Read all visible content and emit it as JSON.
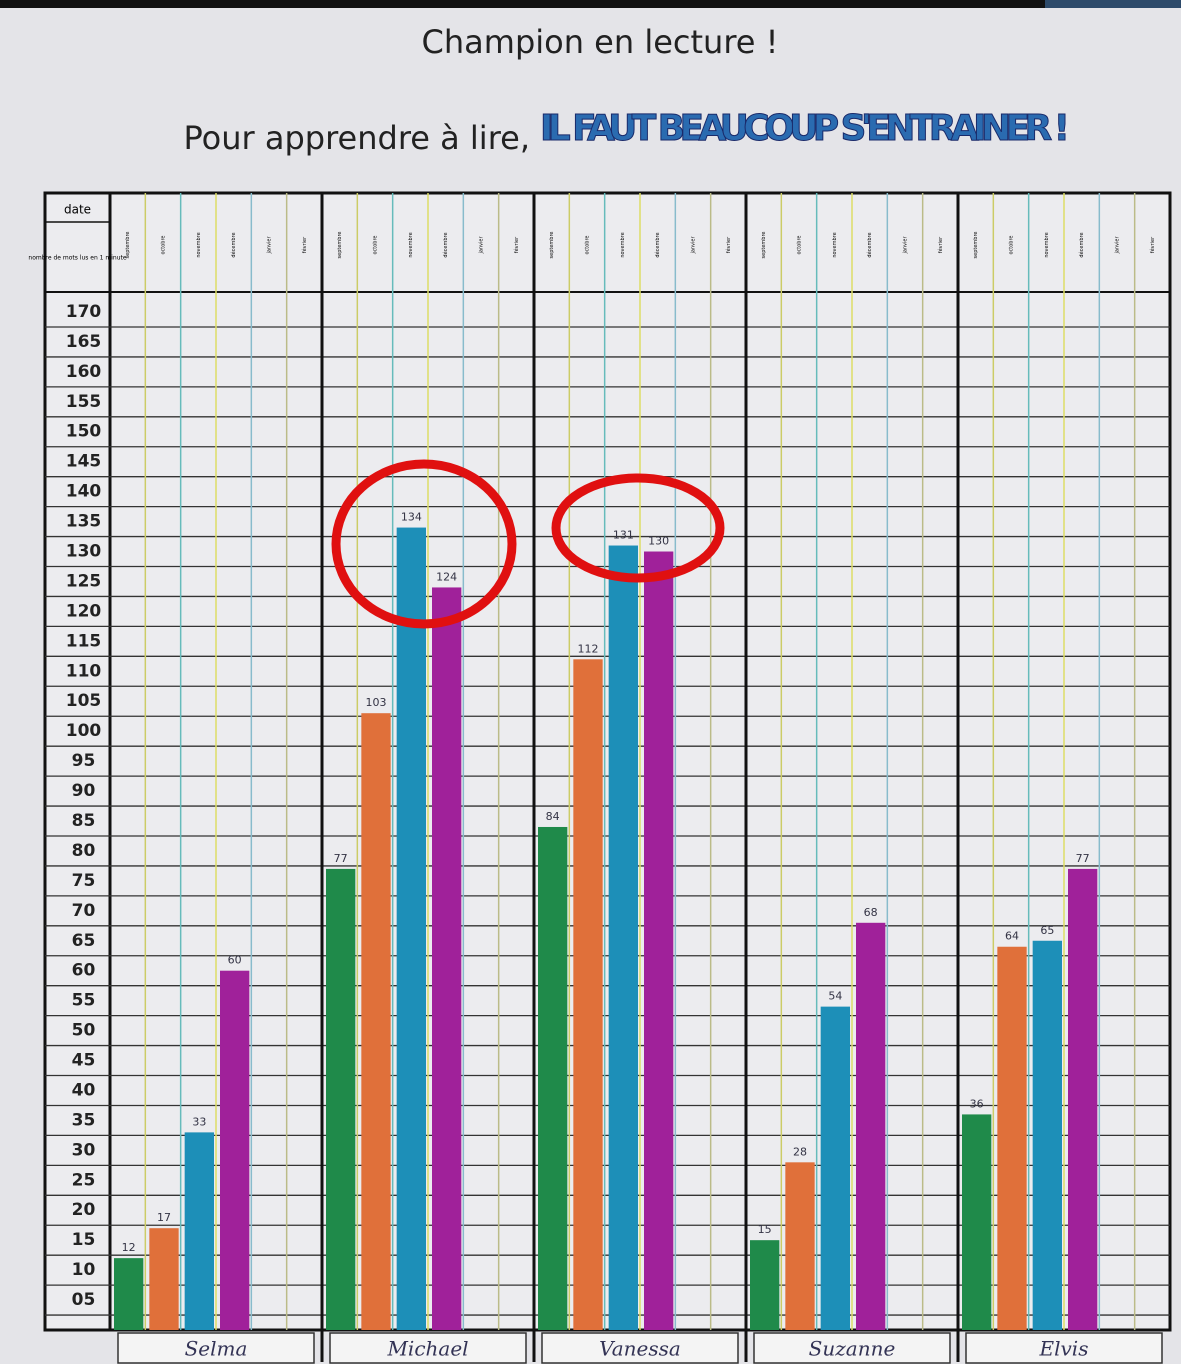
{
  "chart_data": {
    "type": "bar",
    "title": "Champion en lecture !",
    "subtitle": [
      "Pour apprendre à lire,",
      "IL FAUT BEAUCOUP S'ENTRAINER !"
    ],
    "x_header": "date",
    "y_label": "nombre de mots lus en 1 minute",
    "months": [
      "septembre",
      "octobre",
      "novembre",
      "décembre",
      "janvier",
      "février"
    ],
    "categories": [
      "Selma",
      "Michael",
      "Vanessa",
      "Suzanne",
      "Elvis"
    ],
    "series": [
      {
        "color": "#1f8a4a",
        "values": [
          12,
          77,
          84,
          15,
          36
        ]
      },
      {
        "color": "#e0703a",
        "values": [
          17,
          103,
          112,
          28,
          64
        ]
      },
      {
        "color": "#1d8fb8",
        "values": [
          33,
          134,
          131,
          54,
          65
        ]
      },
      {
        "color": "#a0219a",
        "values": [
          60,
          124,
          130,
          68,
          77
        ]
      }
    ],
    "ylim": [
      0,
      172
    ],
    "yticks": [
      {
        "value": 5,
        "label": "05"
      },
      10,
      15,
      20,
      25,
      30,
      35,
      40,
      45,
      50,
      55,
      60,
      65,
      70,
      75,
      80,
      85,
      90,
      95,
      100,
      105,
      110,
      115,
      120,
      125,
      130,
      135,
      140,
      145,
      150,
      155,
      160,
      165,
      170
    ],
    "grid": true
  }
}
